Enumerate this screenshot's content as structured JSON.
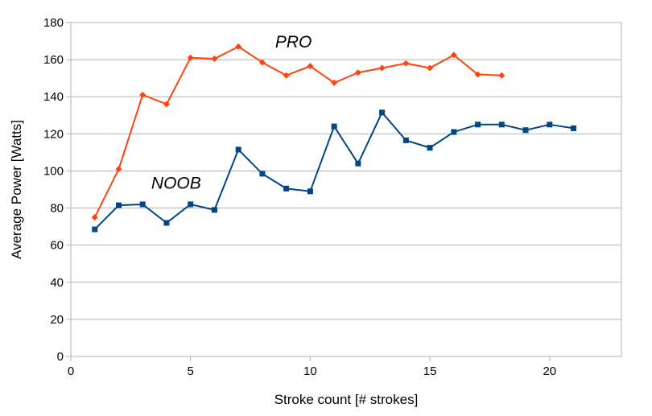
{
  "chart_data": {
    "type": "line",
    "title": "",
    "xlabel": "Stroke count [# strokes]",
    "ylabel": "Average Power [Watts]",
    "xlim": [
      0,
      23
    ],
    "ylim": [
      0,
      180
    ],
    "x_ticks": [
      0,
      5,
      10,
      15,
      20
    ],
    "y_ticks": [
      0,
      20,
      40,
      60,
      80,
      100,
      120,
      140,
      160,
      180
    ],
    "grid": {
      "horizontal": true,
      "vertical": false
    },
    "legend": "none",
    "series": [
      {
        "name": "PRO",
        "color": "#ff420e",
        "marker": "diamond",
        "x": [
          1,
          2,
          3,
          4,
          5,
          6,
          7,
          8,
          9,
          10,
          11,
          12,
          13,
          14,
          15,
          16,
          17,
          18
        ],
        "values": [
          75,
          101,
          141,
          136,
          161,
          160.5,
          167,
          158.5,
          151.5,
          156.5,
          147.5,
          153,
          155.5,
          158,
          155.5,
          162.5,
          152,
          151.5
        ]
      },
      {
        "name": "NOOB",
        "color": "#004586",
        "marker": "square",
        "x": [
          1,
          2,
          3,
          4,
          5,
          6,
          7,
          8,
          9,
          10,
          11,
          12,
          13,
          14,
          15,
          16,
          17,
          18,
          19,
          20,
          21
        ],
        "values": [
          68.5,
          81.5,
          82,
          72,
          82,
          79,
          111.5,
          98.5,
          90.5,
          89,
          124,
          104,
          131.5,
          116.5,
          112.5,
          121,
          125,
          125,
          122,
          125,
          123
        ]
      }
    ]
  }
}
